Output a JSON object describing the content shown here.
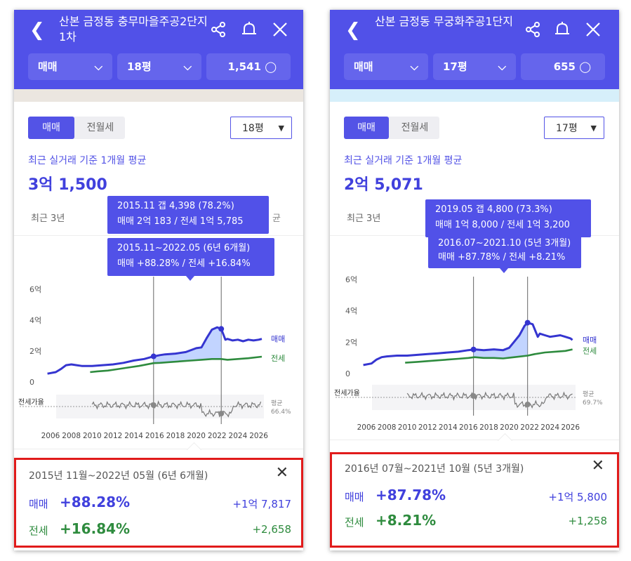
{
  "colors": {
    "accent": "#5151e8",
    "sale": "#3535d0",
    "jeonse": "#2e8b3e",
    "ratio": "#777777",
    "highlight_box": "#e11b1b"
  },
  "panels": [
    {
      "header": {
        "back_icon": "chevron-left-icon",
        "title": "산본 금정동 충무마을주공2단지1차",
        "share_icon": "share-icon",
        "bell_icon": "bell-icon",
        "close_icon": "close-icon"
      },
      "selectors": {
        "type": "매매",
        "size": "18평",
        "count": "1,541"
      },
      "banner_color": "#ebe6e0",
      "tabs": {
        "sale": "매매",
        "rent": "전월세"
      },
      "size_dropdown": "18평",
      "avg_label": "최근 실거래 기준 1개월 평균",
      "avg_price": "3억 1,500",
      "recent_label": "최근 3년",
      "recent_tail": "균",
      "tooltip_gap": {
        "line1": "2015.11  갭 4,398 (78.2%)",
        "line2": "매매 2억 183 / 전세 1억 5,785"
      },
      "tooltip_range": {
        "line1": "2015.11~2022.05 (6년 6개월)",
        "line2": "매매 +88.28%  /  전세 +16.84%"
      },
      "chart": {
        "y_ticks": [
          "6억",
          "4억",
          "2억",
          "0"
        ],
        "x_ticks": [
          "2006",
          "2008",
          "2010",
          "2012",
          "2014",
          "2016",
          "2018",
          "2020",
          "2022",
          "2024",
          "2026"
        ],
        "legend_sale": "매매",
        "legend_jeonse": "전세",
        "ratio_label": "전세가율",
        "ratio_avg_label": "평균",
        "ratio_avg": "66.4%"
      },
      "chart_data": {
        "type": "line",
        "ylim": [
          0,
          6
        ],
        "ylabel_unit": "억",
        "xlim": [
          2006,
          2026.5
        ],
        "series": [
          {
            "name": "매매",
            "x": [
              2005.7,
              2006.5,
              2007.0,
              2007.5,
              2008.0,
              2008.5,
              2009.0,
              2010.0,
              2011.0,
              2012.0,
              2013.0,
              2014.0,
              2015.0,
              2015.9,
              2016.5,
              2017.0,
              2018.0,
              2019.0,
              2020.0,
              2020.5,
              2021.0,
              2021.5,
              2022.0,
              2022.4,
              2022.8,
              2023.0,
              2023.5,
              2024.0,
              2024.5,
              2025.0,
              2025.5,
              2026.0,
              2026.3
            ],
            "values": [
              0.9,
              1.0,
              1.2,
              1.45,
              1.5,
              1.45,
              1.4,
              1.4,
              1.45,
              1.5,
              1.6,
              1.75,
              1.85,
              2.02,
              2.1,
              2.15,
              2.2,
              2.3,
              2.55,
              2.6,
              3.2,
              3.75,
              3.9,
              3.8,
              3.1,
              3.15,
              3.05,
              3.1,
              3.0,
              3.1,
              3.05,
              3.1,
              3.15
            ]
          },
          {
            "name": "전세",
            "x": [
              2009.8,
              2010.5,
              2011.5,
              2012.5,
              2013.5,
              2014.5,
              2015.9,
              2016.5,
              2017.5,
              2018.5,
              2019.5,
              2020.5,
              2021.5,
              2022.4,
              2023.0,
              2024.0,
              2025.0,
              2026.3
            ],
            "values": [
              1.0,
              1.05,
              1.1,
              1.2,
              1.3,
              1.4,
              1.58,
              1.6,
              1.65,
              1.7,
              1.75,
              1.8,
              1.85,
              1.85,
              1.8,
              1.85,
              1.9,
              2.0
            ]
          }
        ],
        "markers": [
          {
            "x": 2015.9,
            "label": "2015.11"
          },
          {
            "x": 2022.4,
            "label": "2022.05"
          }
        ]
      },
      "summary": {
        "period": "2015년 11월~2022년 05월 (6년 6개월)",
        "close_icon": "close-icon",
        "sale_label": "매매",
        "sale_pct": "+88.28%",
        "sale_amount": "+1억 7,817",
        "jeonse_label": "전세",
        "jeonse_pct": "+16.84%",
        "jeonse_amount": "+2,658"
      }
    },
    {
      "header": {
        "back_icon": "chevron-left-icon",
        "title": "산본 금정동 무궁화주공1단지",
        "share_icon": "share-icon",
        "bell_icon": "bell-icon",
        "close_icon": "close-icon"
      },
      "selectors": {
        "type": "매매",
        "size": "17평",
        "count": "655"
      },
      "banner_color": "#d6effa",
      "tabs": {
        "sale": "매매",
        "rent": "전월세"
      },
      "size_dropdown": "17평",
      "avg_label": "최근 실거래 기준 1개월 평균",
      "avg_price": "2억 5,071",
      "recent_label": "최근 3년",
      "recent_tail": "",
      "tooltip_gap": {
        "line1": "2019.05  갭 4,800 (73.3%)",
        "line2": "매매 1억 8,000 / 전세 1억 3,200"
      },
      "tooltip_range": {
        "line1": "2016.07~2021.10 (5년 3개월)",
        "line2": "매매 +87.78%  /  전세 +8.21%"
      },
      "chart": {
        "y_ticks": [
          "6억",
          "4억",
          "2억",
          "0"
        ],
        "x_ticks": [
          "2006",
          "2008",
          "2010",
          "2012",
          "2014",
          "2016",
          "2018",
          "2020",
          "2022",
          "2024",
          "2026"
        ],
        "legend_sale": "매매",
        "legend_jeonse": "전세",
        "ratio_label": "전세가율",
        "ratio_avg_label": "평균",
        "ratio_avg": "69.7%"
      },
      "chart_data": {
        "type": "line",
        "ylim": [
          0,
          6
        ],
        "ylabel_unit": "억",
        "xlim": [
          2006,
          2026.5
        ],
        "series": [
          {
            "name": "매매",
            "x": [
              2005.7,
              2006.5,
              2007.0,
              2007.5,
              2008.0,
              2009.0,
              2010.0,
              2011.0,
              2012.0,
              2013.0,
              2014.0,
              2015.0,
              2016.0,
              2016.6,
              2017.5,
              2018.5,
              2019.4,
              2020.0,
              2020.5,
              2021.0,
              2021.5,
              2021.8,
              2022.3,
              2022.8,
              2023.0,
              2023.5,
              2024.0,
              2024.5,
              2025.0,
              2025.5,
              2026.0,
              2026.2
            ],
            "values": [
              0.9,
              1.0,
              1.25,
              1.4,
              1.45,
              1.5,
              1.5,
              1.55,
              1.6,
              1.65,
              1.7,
              1.75,
              1.85,
              1.9,
              1.85,
              1.9,
              1.85,
              2.0,
              2.4,
              2.8,
              3.4,
              3.6,
              3.5,
              2.7,
              2.9,
              2.8,
              2.7,
              2.75,
              2.8,
              2.7,
              2.6,
              2.5
            ]
          },
          {
            "name": "전세",
            "x": [
              2009.8,
              2011.0,
              2012.0,
              2013.0,
              2014.0,
              2015.0,
              2016.0,
              2016.6,
              2017.5,
              2018.5,
              2019.4,
              2020.5,
              2021.8,
              2022.5,
              2023.5,
              2024.5,
              2025.5,
              2026.2
            ],
            "values": [
              1.05,
              1.1,
              1.15,
              1.2,
              1.25,
              1.3,
              1.35,
              1.4,
              1.35,
              1.35,
              1.32,
              1.4,
              1.5,
              1.6,
              1.7,
              1.75,
              1.8,
              1.9
            ]
          }
        ],
        "markers": [
          {
            "x": 2016.5,
            "label": "2016.07"
          },
          {
            "x": 2021.8,
            "label": "2021.10"
          }
        ]
      },
      "summary": {
        "period": "2016년 07월~2021년 10월 (5년 3개월)",
        "close_icon": "close-icon",
        "sale_label": "매매",
        "sale_pct": "+87.78%",
        "sale_amount": "+1억 5,800",
        "jeonse_label": "전세",
        "jeonse_pct": "+8.21%",
        "jeonse_amount": "+1,258"
      }
    }
  ]
}
